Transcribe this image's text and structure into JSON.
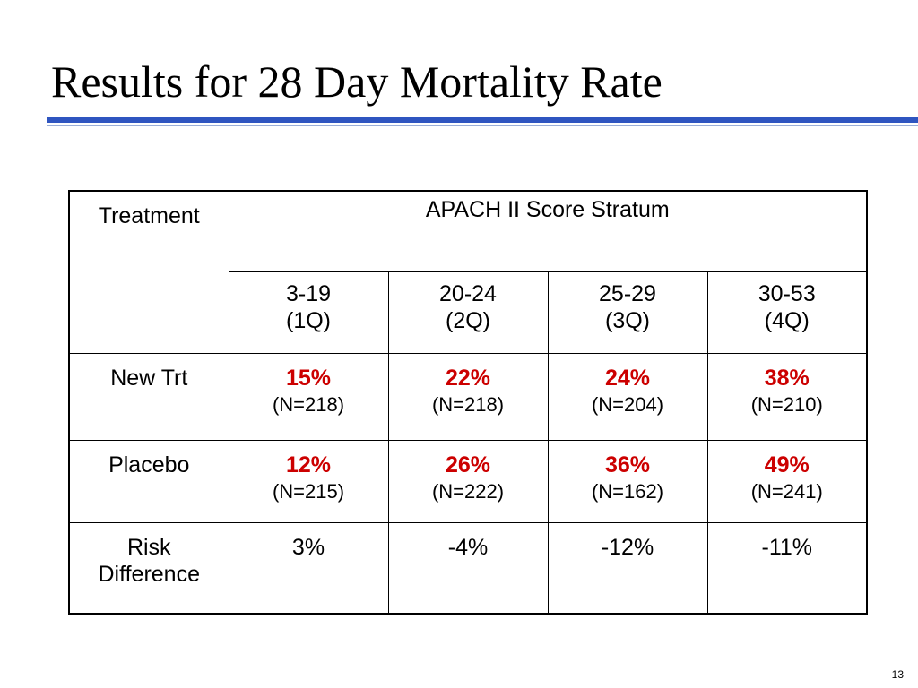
{
  "slide": {
    "title": "Results for 28 Day Mortality Rate",
    "page_number": "13",
    "accent_color": "#2f55c0",
    "highlight_color": "#cc0000"
  },
  "table": {
    "corner_header": "Treatment",
    "group_header": "APACH II Score Stratum",
    "strata": [
      {
        "range": "3-19",
        "quartile": "(1Q)"
      },
      {
        "range": "20-24",
        "quartile": "(2Q)"
      },
      {
        "range": "25-29",
        "quartile": "(3Q)"
      },
      {
        "range": "30-53",
        "quartile": "(4Q)"
      }
    ],
    "rows": [
      {
        "label": "New Trt",
        "cells": [
          {
            "rate": "15%",
            "n": "(N=218)"
          },
          {
            "rate": "22%",
            "n": "(N=218)"
          },
          {
            "rate": "24%",
            "n": "(N=204)"
          },
          {
            "rate": "38%",
            "n": "(N=210)"
          }
        ]
      },
      {
        "label": "Placebo",
        "cells": [
          {
            "rate": "12%",
            "n": "(N=215)"
          },
          {
            "rate": "26%",
            "n": "(N=222)"
          },
          {
            "rate": "36%",
            "n": "(N=162)"
          },
          {
            "rate": "49%",
            "n": "(N=241)"
          }
        ]
      }
    ],
    "risk_row": {
      "label_line1": "Risk",
      "label_line2": "Difference",
      "values": [
        "3%",
        "-4%",
        "-12%",
        "-11%"
      ]
    }
  }
}
